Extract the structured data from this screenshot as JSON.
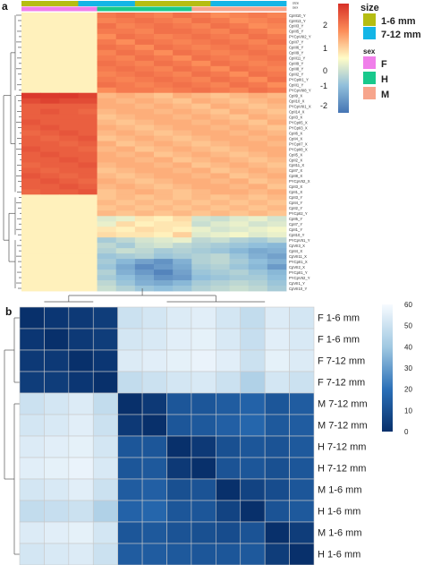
{
  "panel_a": {
    "letter": "a",
    "annotation_titles": [
      "size",
      "sex"
    ],
    "legend_ticks": [
      "2",
      "1",
      "0",
      "-1",
      "-2"
    ],
    "size_legend": {
      "title": "size",
      "items": [
        {
          "label": "1-6 mm",
          "color": "#b5bd12"
        },
        {
          "label": "7-12 mm",
          "color": "#14b5e6"
        }
      ]
    },
    "sex_legend": {
      "title": "sex",
      "items": [
        {
          "label": "F",
          "color": "#f07fea"
        },
        {
          "label": "H",
          "color": "#19c98c"
        },
        {
          "label": "M",
          "color": "#f7a58c"
        }
      ]
    },
    "row_labels": [
      "CpIII10_Y",
      "CpIII13_Y",
      "CpIII3_Y",
      "CpIII5_Y",
      "PYCpVIII2_Y",
      "CpIII7_Y",
      "CpIII6_Y",
      "CpIII9_Y",
      "CpIII11_Y",
      "CpIII9_Y",
      "CpIII8_Y",
      "CpIII2_Y",
      "PYCpIII1_Y",
      "CpIII1_Y",
      "PYCpVIII8_Y",
      "CpII9_X",
      "CpII10_X",
      "PYCpVIII1_X",
      "CpII14_X",
      "CpII3_X",
      "PYCpII5_X",
      "PYCpII3_X",
      "CpII6_X",
      "CpII4_X",
      "PYCpII7_X",
      "PYCpII8_X",
      "CpII5_X",
      "CpII2_X",
      "CpII11_X",
      "CpII7_X",
      "CpII8_X",
      "PYCpVII2_X",
      "CpII3_X",
      "CpII1_X",
      "CpII3_Y",
      "CpII4_Y",
      "CpII2_Y",
      "PYCpII2_Y",
      "CpII5_Y",
      "CpII7_Y",
      "CpII1_Y",
      "CpII10_Y",
      "PYCpVII1_Y",
      "CpVII3_X",
      "CpII4_X",
      "CpVII11_X",
      "PYCpII1_X",
      "CpVII2_X",
      "PYCpII1_Y",
      "PYCpVII2_Y",
      "CpVII1_Y",
      "CpVII10_Y"
    ]
  },
  "panel_b": {
    "letter": "b",
    "legend_ticks": [
      "60",
      "50",
      "40",
      "30",
      "20",
      "10",
      "0"
    ]
  },
  "chart_data": [
    {
      "type": "heatmap",
      "title": "",
      "color_scale": {
        "min": -2,
        "max": 2,
        "colors": [
          "#4575b4",
          "#fffcc7",
          "#d73027"
        ]
      },
      "column_annotations": {
        "size": [
          "1-6 mm",
          "1-6 mm",
          "1-6 mm",
          "7-12 mm",
          "7-12 mm",
          "7-12 mm",
          "1-6 mm",
          "1-6 mm",
          "1-6 mm",
          "1-6 mm",
          "7-12 mm",
          "7-12 mm",
          "7-12 mm",
          "7-12 mm"
        ],
        "sex": [
          "F",
          "F",
          "F",
          "F",
          "H",
          "H",
          "H",
          "H",
          "H",
          "M",
          "M",
          "M",
          "M",
          "M"
        ]
      },
      "rows": [
        "CpIII10_Y",
        "CpIII13_Y",
        "CpIII3_Y",
        "CpIII5_Y",
        "PYCpVIII2_Y",
        "CpIII7_Y",
        "CpIII6_Y",
        "CpIII9_Y",
        "CpIII11_Y",
        "CpIII9_Y",
        "CpIII8_Y",
        "CpIII2_Y",
        "PYCpIII1_Y",
        "CpIII1_Y",
        "PYCpVIII8_Y",
        "CpII9_X",
        "CpII10_X",
        "PYCpVIII1_X",
        "CpII14_X",
        "CpII3_X",
        "PYCpII5_X",
        "PYCpII3_X",
        "CpII6_X",
        "CpII4_X",
        "PYCpII7_X",
        "PYCpII8_X",
        "CpII5_X",
        "CpII2_X",
        "CpII11_X",
        "CpII7_X",
        "CpII8_X",
        "PYCpVII2_X",
        "CpII3_X",
        "CpII1_X",
        "CpII3_Y",
        "CpII4_Y",
        "CpII2_Y",
        "PYCpII2_Y",
        "CpII5_Y",
        "CpII7_Y",
        "CpII1_Y",
        "CpII10_Y",
        "PYCpVII1_Y",
        "CpVII3_X",
        "CpII4_X",
        "CpVII11_X",
        "PYCpII1_X",
        "CpVII2_X",
        "PYCpII1_Y",
        "PYCpVII2_Y",
        "CpVII1_Y",
        "CpVII10_Y"
      ],
      "values": [
        [
          0.1,
          0.1,
          0.1,
          0.1,
          1.2,
          1.3,
          1.2,
          1.1,
          1.3,
          1.2,
          1.0,
          1.1,
          1.2,
          1.1
        ],
        [
          0.1,
          0.1,
          0.1,
          0.1,
          1.1,
          1.2,
          1.3,
          1.2,
          1.1,
          1.3,
          1.2,
          1.0,
          1.1,
          1.2
        ],
        [
          0.1,
          0.1,
          0.1,
          0.1,
          1.3,
          1.1,
          1.2,
          1.3,
          1.2,
          1.1,
          1.3,
          1.2,
          1.0,
          1.1
        ],
        [
          0.1,
          0.1,
          0.1,
          0.1,
          1.2,
          1.2,
          1.1,
          1.3,
          1.3,
          1.2,
          1.1,
          1.3,
          1.2,
          1.0
        ],
        [
          0.1,
          0.1,
          0.1,
          0.1,
          1.0,
          1.3,
          1.2,
          1.1,
          1.2,
          1.3,
          1.2,
          1.1,
          1.3,
          1.2
        ],
        [
          0.1,
          0.1,
          0.1,
          0.1,
          1.2,
          1.0,
          1.3,
          1.2,
          1.1,
          1.2,
          1.3,
          1.2,
          1.1,
          1.3
        ],
        [
          0.1,
          0.1,
          0.1,
          0.1,
          1.3,
          1.2,
          1.0,
          1.3,
          1.2,
          1.1,
          1.2,
          1.3,
          1.2,
          1.1
        ],
        [
          0.1,
          0.1,
          0.1,
          0.1,
          1.1,
          1.3,
          1.2,
          1.0,
          1.3,
          1.2,
          1.1,
          1.2,
          1.3,
          1.2
        ],
        [
          0.1,
          0.1,
          0.1,
          0.1,
          1.2,
          1.1,
          1.3,
          1.2,
          1.0,
          1.3,
          1.2,
          1.1,
          1.2,
          1.3
        ],
        [
          0.1,
          0.1,
          0.1,
          0.1,
          1.3,
          1.2,
          1.1,
          1.3,
          1.2,
          1.0,
          1.3,
          1.2,
          1.1,
          1.2
        ],
        [
          0.1,
          0.1,
          0.1,
          0.1,
          1.2,
          1.3,
          1.2,
          1.1,
          1.3,
          1.2,
          1.0,
          1.3,
          1.2,
          1.1
        ],
        [
          0.1,
          0.1,
          0.1,
          0.1,
          1.1,
          1.2,
          1.3,
          1.2,
          1.1,
          1.3,
          1.2,
          1.0,
          1.3,
          1.2
        ],
        [
          0.1,
          0.1,
          0.1,
          0.1,
          1.2,
          1.1,
          1.2,
          1.3,
          1.2,
          1.1,
          1.3,
          1.2,
          1.0,
          1.3
        ],
        [
          0.1,
          0.1,
          0.1,
          0.1,
          1.3,
          1.2,
          1.1,
          1.2,
          1.3,
          1.2,
          1.1,
          1.3,
          1.2,
          1.0
        ],
        [
          0.1,
          0.1,
          0.1,
          0.1,
          1.0,
          1.2,
          1.2,
          1.1,
          1.2,
          1.3,
          1.2,
          1.1,
          1.3,
          1.2
        ],
        [
          1.9,
          1.9,
          1.9,
          1.8,
          0.6,
          0.7,
          0.6,
          0.5,
          0.7,
          0.6,
          0.5,
          0.6,
          0.7,
          0.6
        ],
        [
          1.7,
          1.8,
          1.7,
          1.7,
          0.7,
          0.6,
          0.7,
          0.6,
          0.5,
          0.7,
          0.6,
          0.5,
          0.6,
          0.7
        ],
        [
          1.5,
          1.5,
          1.5,
          1.5,
          0.7,
          0.7,
          0.6,
          0.7,
          0.6,
          0.5,
          0.7,
          0.6,
          0.5,
          0.6
        ],
        [
          1.5,
          1.6,
          1.5,
          1.4,
          0.6,
          0.7,
          0.7,
          0.6,
          0.7,
          0.6,
          0.5,
          0.7,
          0.6,
          0.5
        ],
        [
          1.5,
          1.5,
          1.5,
          1.5,
          0.5,
          0.6,
          0.7,
          0.7,
          0.6,
          0.7,
          0.6,
          0.5,
          0.7,
          0.6
        ],
        [
          1.6,
          1.5,
          1.5,
          1.5,
          0.6,
          0.5,
          0.6,
          0.7,
          0.7,
          0.6,
          0.7,
          0.6,
          0.5,
          0.7
        ],
        [
          1.5,
          1.6,
          1.5,
          1.5,
          0.7,
          0.6,
          0.5,
          0.6,
          0.7,
          0.7,
          0.6,
          0.7,
          0.6,
          0.5
        ],
        [
          1.4,
          1.5,
          1.6,
          1.5,
          0.6,
          0.7,
          0.6,
          0.5,
          0.6,
          0.7,
          0.7,
          0.6,
          0.7,
          0.6
        ],
        [
          1.5,
          1.4,
          1.5,
          1.6,
          0.5,
          0.6,
          0.7,
          0.6,
          0.5,
          0.6,
          0.7,
          0.7,
          0.6,
          0.7
        ],
        [
          1.5,
          1.5,
          1.4,
          1.5,
          0.7,
          0.5,
          0.6,
          0.7,
          0.6,
          0.5,
          0.6,
          0.7,
          0.7,
          0.6
        ],
        [
          1.6,
          1.5,
          1.5,
          1.4,
          0.6,
          0.7,
          0.5,
          0.6,
          0.7,
          0.6,
          0.5,
          0.6,
          0.7,
          0.7
        ],
        [
          1.5,
          1.6,
          1.5,
          1.5,
          0.7,
          0.6,
          0.7,
          0.5,
          0.6,
          0.7,
          0.6,
          0.5,
          0.6,
          0.7
        ],
        [
          1.5,
          1.5,
          1.6,
          1.5,
          0.7,
          0.7,
          0.6,
          0.7,
          0.5,
          0.6,
          0.7,
          0.6,
          0.5,
          0.6
        ],
        [
          1.4,
          1.5,
          1.5,
          1.6,
          0.6,
          0.7,
          0.7,
          0.6,
          0.7,
          0.5,
          0.6,
          0.7,
          0.6,
          0.5
        ],
        [
          1.5,
          1.4,
          1.5,
          1.5,
          0.5,
          0.6,
          0.7,
          0.7,
          0.6,
          0.7,
          0.5,
          0.6,
          0.7,
          0.6
        ],
        [
          1.6,
          1.5,
          1.4,
          1.5,
          0.6,
          0.5,
          0.6,
          0.7,
          0.7,
          0.6,
          0.7,
          0.5,
          0.6,
          0.7
        ],
        [
          1.5,
          1.6,
          1.5,
          1.4,
          0.7,
          0.6,
          0.5,
          0.6,
          0.7,
          0.7,
          0.6,
          0.7,
          0.5,
          0.6
        ],
        [
          1.5,
          1.5,
          1.6,
          1.5,
          0.6,
          0.7,
          0.6,
          0.5,
          0.6,
          0.7,
          0.7,
          0.6,
          0.7,
          0.5
        ],
        [
          1.4,
          1.5,
          1.5,
          1.6,
          0.5,
          0.6,
          0.7,
          0.6,
          0.5,
          0.6,
          0.7,
          0.7,
          0.6,
          0.7
        ],
        [
          0.1,
          0.1,
          0.1,
          0.1,
          0.5,
          0.6,
          0.5,
          0.6,
          0.5,
          0.6,
          0.5,
          0.6,
          0.5,
          0.6
        ],
        [
          0.1,
          0.1,
          0.1,
          0.1,
          0.6,
          0.5,
          0.6,
          0.5,
          0.6,
          0.5,
          0.6,
          0.5,
          0.6,
          0.5
        ],
        [
          0.1,
          0.1,
          0.1,
          0.1,
          0.5,
          0.6,
          0.5,
          0.6,
          0.5,
          0.6,
          0.5,
          0.6,
          0.5,
          0.6
        ],
        [
          0.1,
          0.1,
          0.1,
          0.1,
          0.6,
          0.5,
          0.6,
          0.5,
          0.6,
          0.5,
          0.6,
          0.5,
          0.6,
          0.5
        ],
        [
          0.1,
          0.1,
          0.1,
          0.1,
          -0.3,
          -0.2,
          0.2,
          0.1,
          0.3,
          -0.4,
          -0.5,
          -0.3,
          -0.2,
          -0.4
        ],
        [
          0.1,
          0.1,
          0.1,
          0.1,
          -0.2,
          0.3,
          0.1,
          0.2,
          0.2,
          -0.5,
          -0.3,
          -0.2,
          -0.4,
          -0.3
        ],
        [
          0.1,
          0.1,
          0.1,
          0.1,
          0.2,
          0.1,
          0.3,
          0.2,
          0.1,
          -0.2,
          -0.4,
          -0.3,
          -0.2,
          -0.1
        ],
        [
          0.1,
          0.1,
          0.1,
          0.1,
          0.3,
          0.2,
          0.2,
          0.1,
          0.4,
          -0.3,
          -0.2,
          -0.1,
          -0.3,
          -0.2
        ],
        [
          0.1,
          0.1,
          0.1,
          0.1,
          -0.8,
          -0.6,
          -0.4,
          -0.3,
          -0.2,
          -0.6,
          -0.5,
          -0.7,
          -0.8,
          -0.6
        ],
        [
          0.1,
          0.1,
          0.1,
          0.1,
          -0.6,
          -0.8,
          -0.5,
          -0.4,
          -0.6,
          -0.7,
          -0.8,
          -0.9,
          -1.0,
          -1.1
        ],
        [
          0.1,
          0.1,
          0.1,
          0.1,
          -0.7,
          -0.5,
          -0.6,
          -0.8,
          -0.7,
          -0.8,
          -0.9,
          -1.1,
          -1.3,
          -1.2
        ],
        [
          0.1,
          0.1,
          0.1,
          0.1,
          -0.9,
          -0.8,
          -0.7,
          -0.9,
          -0.8,
          -0.7,
          -0.6,
          -0.9,
          -1.2,
          -1.4
        ],
        [
          0.1,
          0.1,
          0.1,
          0.1,
          -0.8,
          -1.1,
          -1.4,
          -1.6,
          -1.2,
          -0.7,
          -0.6,
          -0.8,
          -1.0,
          -1.2
        ],
        [
          0.1,
          0.1,
          0.1,
          0.1,
          -0.9,
          -1.3,
          -1.7,
          -1.5,
          -1.3,
          -0.8,
          -0.7,
          -0.9,
          -1.1,
          -1.5
        ],
        [
          0.1,
          0.1,
          0.1,
          0.1,
          -0.7,
          -1.2,
          -1.5,
          -1.8,
          -1.4,
          -0.9,
          -0.8,
          -0.7,
          -0.9,
          -1.1
        ],
        [
          0.1,
          0.1,
          0.1,
          0.1,
          -0.8,
          -1.0,
          -1.3,
          -1.6,
          -1.5,
          -1.0,
          -0.9,
          -0.8,
          -0.8,
          -1.0
        ],
        [
          0.1,
          0.1,
          0.1,
          0.1,
          -0.6,
          -0.9,
          -1.2,
          -1.3,
          -1.1,
          -0.8,
          -0.7,
          -0.6,
          -0.7,
          -0.9
        ],
        [
          0.1,
          0.1,
          0.1,
          0.1,
          -0.5,
          -0.7,
          -0.9,
          -1.0,
          -0.9,
          -0.7,
          -0.6,
          -0.5,
          -0.6,
          -0.8
        ]
      ]
    },
    {
      "type": "heatmap",
      "title": "",
      "color_scale": {
        "min": 0,
        "max": 60,
        "colors": [
          "#08306b",
          "#2a6fb7",
          "#9ec7e1",
          "#f7fbff"
        ]
      },
      "legend_ticks": [
        0,
        10,
        20,
        30,
        40,
        50,
        60
      ],
      "rows": [
        "F 1-6 mm",
        "F 1-6 mm",
        "F 7-12 mm",
        "F 7-12 mm",
        "M 7-12 mm",
        "M 7-12 mm",
        "H 7-12 mm",
        "H 7-12 mm",
        "M 1-6 mm",
        "H 1-6 mm",
        "M 1-6 mm",
        "H 1-6 mm"
      ],
      "columns": [
        "F 1-6 mm",
        "F 1-6 mm",
        "F 7-12 mm",
        "F 7-12 mm",
        "M 7-12 mm",
        "M 7-12 mm",
        "H 7-12 mm",
        "H 7-12 mm",
        "M 1-6 mm",
        "H 1-6 mm",
        "M 1-6 mm",
        "H 1-6 mm"
      ],
      "values": [
        [
          0,
          2,
          3,
          4,
          50,
          52,
          54,
          55,
          52,
          48,
          54,
          52
        ],
        [
          2,
          0,
          3,
          4,
          52,
          53,
          55,
          56,
          53,
          49,
          55,
          53
        ],
        [
          3,
          3,
          0,
          2,
          54,
          55,
          56,
          57,
          55,
          50,
          56,
          54
        ],
        [
          4,
          4,
          2,
          0,
          48,
          50,
          52,
          53,
          50,
          44,
          52,
          50
        ],
        [
          50,
          52,
          54,
          48,
          0,
          3,
          12,
          12,
          14,
          16,
          12,
          14
        ],
        [
          52,
          53,
          55,
          50,
          3,
          0,
          12,
          13,
          15,
          17,
          13,
          14
        ],
        [
          54,
          55,
          56,
          52,
          12,
          12,
          0,
          3,
          10,
          12,
          11,
          13
        ],
        [
          55,
          56,
          57,
          53,
          12,
          13,
          3,
          0,
          11,
          12,
          10,
          12
        ],
        [
          52,
          53,
          55,
          50,
          14,
          15,
          10,
          11,
          0,
          6,
          9,
          12
        ],
        [
          48,
          49,
          50,
          44,
          16,
          17,
          12,
          12,
          6,
          0,
          11,
          13
        ],
        [
          54,
          55,
          56,
          52,
          12,
          13,
          11,
          10,
          9,
          11,
          0,
          4
        ],
        [
          52,
          53,
          54,
          50,
          14,
          14,
          13,
          12,
          12,
          13,
          4,
          0
        ]
      ]
    }
  ]
}
